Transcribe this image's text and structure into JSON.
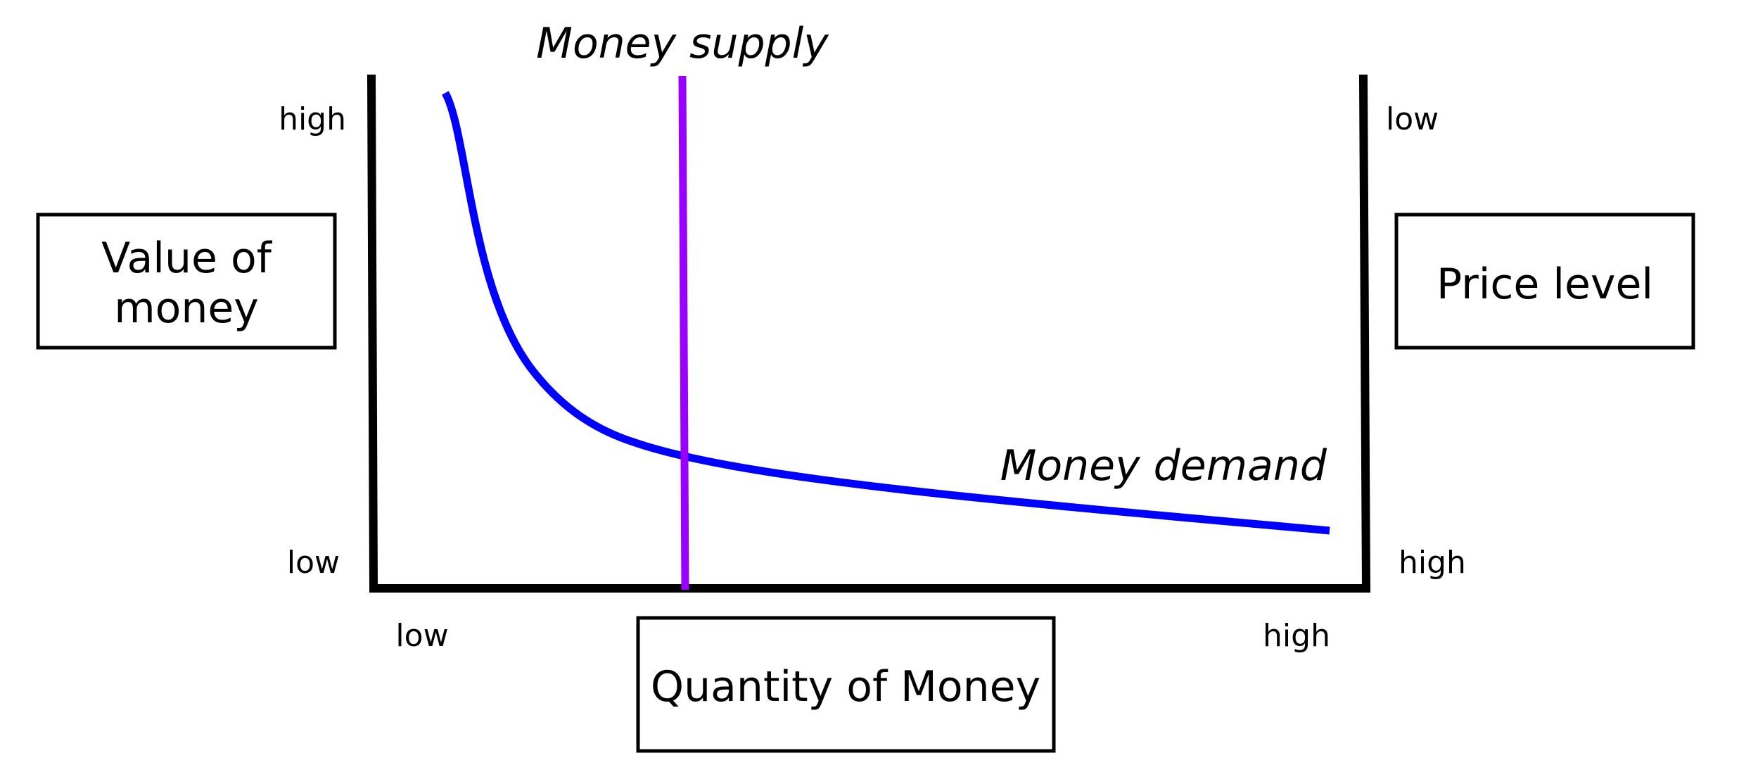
{
  "curves": {
    "supply": {
      "label": "Money supply",
      "color": "#9900FF"
    },
    "demand": {
      "label": "Money demand",
      "color": "#0000FF"
    }
  },
  "left_axis": {
    "title_line1": "Value of",
    "title_line2": "money",
    "top_tick": "high",
    "bottom_tick": "low"
  },
  "right_axis": {
    "title": "Price level",
    "top_tick": "low",
    "bottom_tick": "high"
  },
  "x_axis": {
    "title": "Quantity of Money",
    "left_tick": "low",
    "right_tick": "high"
  },
  "colors": {
    "axis": "#000000",
    "supply_curve": "#9900FF",
    "demand_curve": "#0000FF"
  }
}
